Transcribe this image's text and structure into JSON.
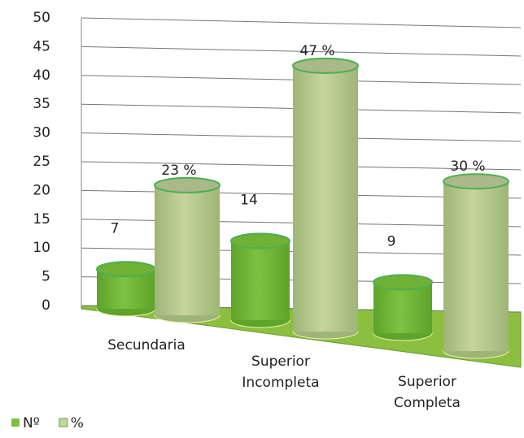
{
  "chart_data": {
    "type": "bar3d",
    "categories": [
      "Secundaria",
      "Superior Incompleta",
      "Superior Completa"
    ],
    "series": [
      {
        "name": "Nº",
        "color": "#7cc242",
        "values": [
          7,
          14,
          9
        ]
      },
      {
        "name": "%",
        "color": "#c5d59c",
        "values": [
          23,
          47,
          30
        ],
        "value_labels": [
          "23 %",
          "47 %",
          "30 %"
        ]
      }
    ],
    "ylim": [
      0,
      50
    ],
    "yticks": [
      0,
      5,
      10,
      15,
      20,
      25,
      30,
      35,
      40,
      45,
      50
    ],
    "grid": true,
    "legend": "bottom-left"
  }
}
